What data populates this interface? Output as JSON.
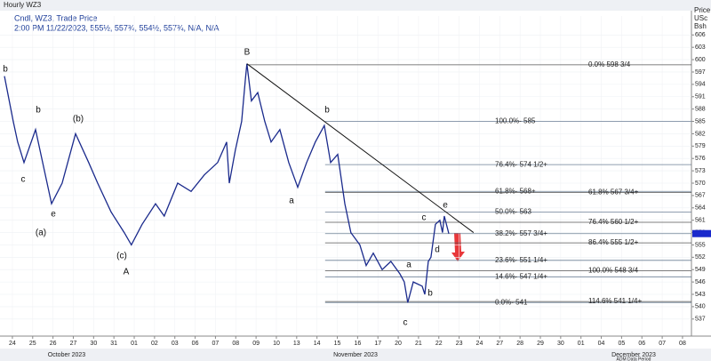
{
  "chart_data": {
    "type": "line",
    "title": "Hourly WZ3",
    "subtitle": "Cndl, WZ3, Trade Price",
    "quote": "2:00 PM 11/22/2023, 555½, 557¾, 554½, 557¾, N/A, N/A",
    "ylabel": [
      "Price",
      "USc",
      "Bsh"
    ],
    "ylim": [
      533.5,
      610.6
    ],
    "yticks": [
      537,
      540,
      543,
      546,
      549,
      552,
      555,
      558,
      561,
      564,
      567,
      570,
      573,
      576,
      579,
      582,
      585,
      588,
      591,
      594,
      597,
      600,
      603,
      606
    ],
    "xlim": [
      -0.61,
      33.44
    ],
    "xticks": [
      {
        "value": 0,
        "label": "24"
      },
      {
        "value": 1,
        "label": "25"
      },
      {
        "value": 2,
        "label": "26"
      },
      {
        "value": 3,
        "label": "27"
      },
      {
        "value": 4,
        "label": "30"
      },
      {
        "value": 5,
        "label": "31"
      },
      {
        "value": 6,
        "label": "01"
      },
      {
        "value": 7,
        "label": "02"
      },
      {
        "value": 8,
        "label": "03"
      },
      {
        "value": 9,
        "label": "06"
      },
      {
        "value": 10,
        "label": "07"
      },
      {
        "value": 11,
        "label": "08"
      },
      {
        "value": 12,
        "label": "09"
      },
      {
        "value": 13,
        "label": "10"
      },
      {
        "value": 14,
        "label": "13"
      },
      {
        "value": 15,
        "label": "14"
      },
      {
        "value": 16,
        "label": "15"
      },
      {
        "value": 17,
        "label": "16"
      },
      {
        "value": 18,
        "label": "17"
      },
      {
        "value": 19,
        "label": "20"
      },
      {
        "value": 20,
        "label": "21"
      },
      {
        "value": 21,
        "label": "22"
      },
      {
        "value": 22,
        "label": "23"
      },
      {
        "value": 23,
        "label": "24"
      },
      {
        "value": 24,
        "label": "27"
      },
      {
        "value": 25,
        "label": "28"
      },
      {
        "value": 26,
        "label": "29"
      },
      {
        "value": 27,
        "label": "30"
      },
      {
        "value": 28,
        "label": "01"
      },
      {
        "value": 29,
        "label": "04"
      },
      {
        "value": 30,
        "label": "05"
      },
      {
        "value": 31,
        "label": "06"
      },
      {
        "value": 32,
        "label": "07"
      },
      {
        "value": 33,
        "label": "08"
      }
    ],
    "months": [
      "October 2023",
      "November 2023",
      "December 2023"
    ],
    "footer": "ADM Data Period",
    "grid": true,
    "series": [
      {
        "color": "#1a2a8c",
        "x": [
          -0.39,
          0.04,
          0.26,
          0.57,
          1.14,
          1.93,
          2.45,
          3.11,
          3.76,
          4.2,
          4.86,
          5.51,
          5.86,
          6.39,
          7.05,
          7.48,
          8.14,
          8.8,
          9.45,
          10.11,
          10.55,
          10.68,
          10.98,
          11.29,
          11.47,
          11.55,
          11.77,
          12.08,
          12.43,
          12.74,
          13.17,
          13.61,
          14.05,
          14.49,
          14.92,
          15.36,
          15.67,
          16.02,
          16.37,
          16.67,
          17.11,
          17.42,
          17.77,
          18.21,
          18.64,
          19.08,
          19.3,
          19.47,
          19.74,
          20.18,
          20.31,
          20.48,
          20.61,
          20.83,
          21.05,
          21.18,
          21.27,
          21.49
        ],
        "values": [
          596,
          585,
          580,
          575,
          583,
          565,
          570,
          582,
          575,
          570,
          563,
          558,
          555,
          560,
          565,
          562,
          570,
          568,
          572,
          575,
          580,
          570,
          578,
          585,
          595,
          599,
          590,
          592,
          585,
          580,
          583,
          575,
          569,
          575,
          580,
          584,
          575,
          577,
          565,
          558,
          555,
          550,
          553,
          549,
          551,
          548,
          546,
          541,
          546,
          545,
          543,
          551,
          552,
          560,
          561,
          558,
          562,
          557.75
        ]
      }
    ],
    "trendline": {
      "x": [
        11.55,
        22.71
      ],
      "y": [
        599,
        558
      ]
    },
    "fib_left": [
      {
        "label": "100.0%- 585",
        "value": 585
      },
      {
        "label": "76.4%- 574 1/2+",
        "value": 574.5
      },
      {
        "label": "61.8%- 568+",
        "value": 568
      },
      {
        "label": "50.0%- 563",
        "value": 563
      },
      {
        "label": "38.2%- 557 3/4+",
        "value": 557.75
      },
      {
        "label": "23.6%- 551 1/4+",
        "value": 551.25
      },
      {
        "label": "14.6%- 547 1/4+",
        "value": 547.25
      },
      {
        "label": "0.0%- 541",
        "value": 541
      }
    ],
    "fib_right": [
      {
        "label": "0.0%     598 3/4",
        "value": 598.75
      },
      {
        "label": "61.8%   567 3/4+",
        "value": 567.75
      },
      {
        "label": "76.4%   560 1/2+",
        "value": 560.5
      },
      {
        "label": "86.4%   555 1/2+",
        "value": 555.5
      },
      {
        "label": "100.0% 548 3/4",
        "value": 548.75
      },
      {
        "label": "114.6% 541 1/4+",
        "value": 541.25
      }
    ],
    "waves": [
      "b",
      "c",
      "e",
      "b",
      "(b)",
      "(a)",
      "(c)",
      "A",
      "B",
      "b",
      "a",
      "c",
      "e",
      "d",
      "a",
      "b",
      "c"
    ]
  }
}
